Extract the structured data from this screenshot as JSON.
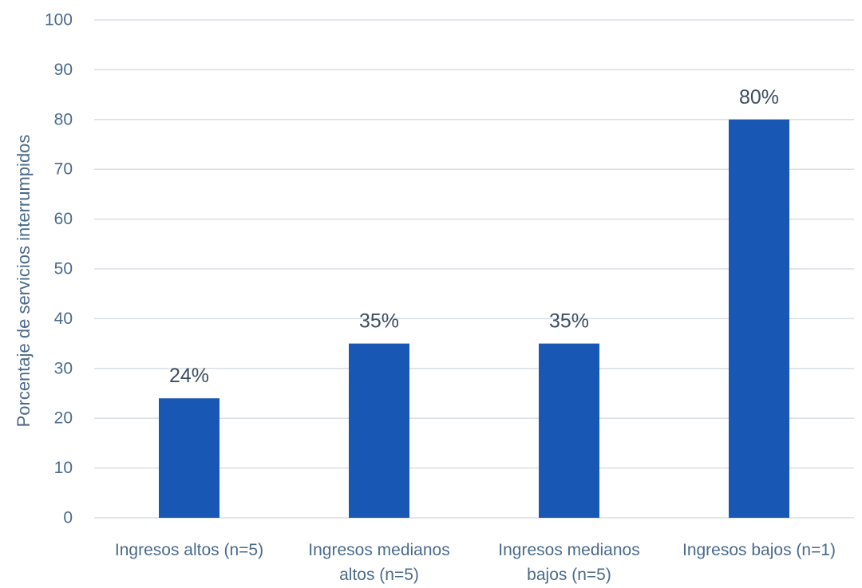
{
  "chart_data": {
    "type": "bar",
    "title": "",
    "xlabel": "",
    "ylabel": "Porcentaje de servicios interrumpidos",
    "categories": [
      [
        "Ingresos altos (n=5)"
      ],
      [
        "Ingresos medianos",
        "altos (n=5)"
      ],
      [
        "Ingresos medianos",
        "bajos (n=5)"
      ],
      [
        "Ingresos bajos (n=1)"
      ]
    ],
    "values": [
      24,
      35,
      35,
      80
    ],
    "data_labels": [
      "24%",
      "35%",
      "35%",
      "80%"
    ],
    "ylim": [
      0,
      100
    ],
    "yticks": [
      0,
      10,
      20,
      30,
      40,
      50,
      60,
      70,
      80,
      90,
      100
    ],
    "grid": true,
    "legend": "none",
    "colors": {
      "bar": "#1957B5",
      "grid": "#D9DEE6",
      "axis_text": "#4A6A8C",
      "data_label": "#3E4E60"
    }
  }
}
